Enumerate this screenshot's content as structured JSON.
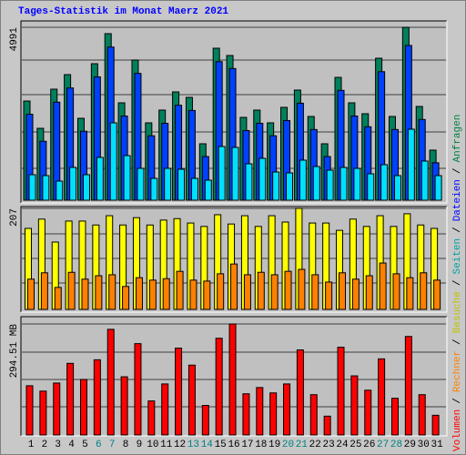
{
  "chart_data": {
    "type": "bar",
    "title": "Tages-Statistik im Monat Maerz 2021",
    "title_color": "#0000ff",
    "categories": [
      "1",
      "2",
      "3",
      "4",
      "5",
      "6",
      "7",
      "8",
      "9",
      "10",
      "11",
      "12",
      "13",
      "14",
      "15",
      "16",
      "17",
      "18",
      "19",
      "20",
      "21",
      "22",
      "23",
      "24",
      "25",
      "26",
      "27",
      "28",
      "29",
      "30",
      "31"
    ],
    "category_colors": [
      "#000000",
      "#000000",
      "#000000",
      "#000000",
      "#000000",
      "#008080",
      "#008080",
      "#000000",
      "#000000",
      "#000000",
      "#000000",
      "#000000",
      "#008080",
      "#008080",
      "#000000",
      "#000000",
      "#000000",
      "#000000",
      "#000000",
      "#008080",
      "#008080",
      "#000000",
      "#000000",
      "#000000",
      "#000000",
      "#000000",
      "#008080",
      "#008080",
      "#000000",
      "#000000",
      "#000000"
    ],
    "legend_separator": "/",
    "panels": [
      {
        "ylim": [
          0,
          4991
        ],
        "yticks": [
          4991
        ],
        "series": [
          {
            "name": "Anfragen",
            "color": "#00805c",
            "legend_color": "#008040",
            "values": [
              2863,
              2075,
              3205,
              3625,
              2364,
              3940,
              4807,
              2811,
              4046,
              2233,
              2601,
              3126,
              2968,
              1629,
              4387,
              4177,
              2391,
              2601,
              2233,
              2680,
              3179,
              2417,
              1629,
              3546,
              2811,
              2496,
              4098,
              2417,
              4991,
              2706,
              1445
            ]
          },
          {
            "name": "Dateien",
            "color": "#0040ff",
            "legend_color": "#0000ff",
            "values": [
              2480,
              1700,
              2830,
              3240,
              1990,
              3560,
              4420,
              2430,
              3660,
              1860,
              2220,
              2740,
              2590,
              1260,
              4000,
              3800,
              2010,
              2220,
              1860,
              2300,
              2800,
              2040,
              1260,
              3170,
              2430,
              2120,
              3710,
              2040,
              4466,
              2330,
              1080
            ]
          },
          {
            "name": "Seiten",
            "color": "#00e0ff",
            "legend_color": "#00a0a0",
            "values": [
              736,
              709,
              552,
              946,
              736,
              1235,
              2233,
              1287,
              919,
              630,
              919,
              893,
              630,
              578,
              1550,
              1524,
              1051,
              1208,
              814,
              788,
              1156,
              972,
              867,
              946,
              919,
              762,
              1025,
              709,
              2049,
              1130,
              709
            ]
          }
        ]
      },
      {
        "ylim": [
          0,
          207
        ],
        "yticks": [
          207
        ],
        "series": [
          {
            "name": "Besuche",
            "color": "#ffff00",
            "legend_color": "#c0c000",
            "values": [
              166,
              185,
              138,
              181,
              181,
              173,
              192,
              173,
              188,
              173,
              183,
              186,
              177,
              170,
              194,
              175,
              192,
              170,
              192,
              179,
              207,
              177,
              177,
              162,
              185,
              170,
              192,
              170,
              196,
              173,
              166
            ]
          },
          {
            "name": "Rechner",
            "color": "#ff8000",
            "legend_color": "#ff8000",
            "values": [
              62,
              75,
              45,
              76,
              62,
              69,
              71,
              47,
              65,
              60,
              63,
              78,
              60,
              58,
              73,
              93,
              71,
              76,
              71,
              78,
              82,
              71,
              56,
              75,
              62,
              69,
              95,
              73,
              65,
              75,
              60
            ]
          }
        ]
      },
      {
        "ylim": [
          0,
          294.51
        ],
        "yticks": [
          {
            "value": 294.51,
            "label": "294.51 MB"
          }
        ],
        "series": [
          {
            "name": "Volumen",
            "color": "#ff0000",
            "legend_color": "#ff0000",
            "values": [
              130.6,
              116.4,
              137.8,
              190.0,
              147.3,
              199.5,
              280.3,
              154.4,
              242.3,
              90.3,
              135.4,
              230.4,
              185.3,
              78.4,
              256.5,
              294.51,
              109.3,
              125.9,
              111.6,
              135.4,
              225.6,
              106.9,
              49.9,
              232.8,
              156.8,
              118.8,
              201.9,
              97.4,
              261.3,
              106.9,
              52.3
            ]
          }
        ]
      }
    ]
  }
}
